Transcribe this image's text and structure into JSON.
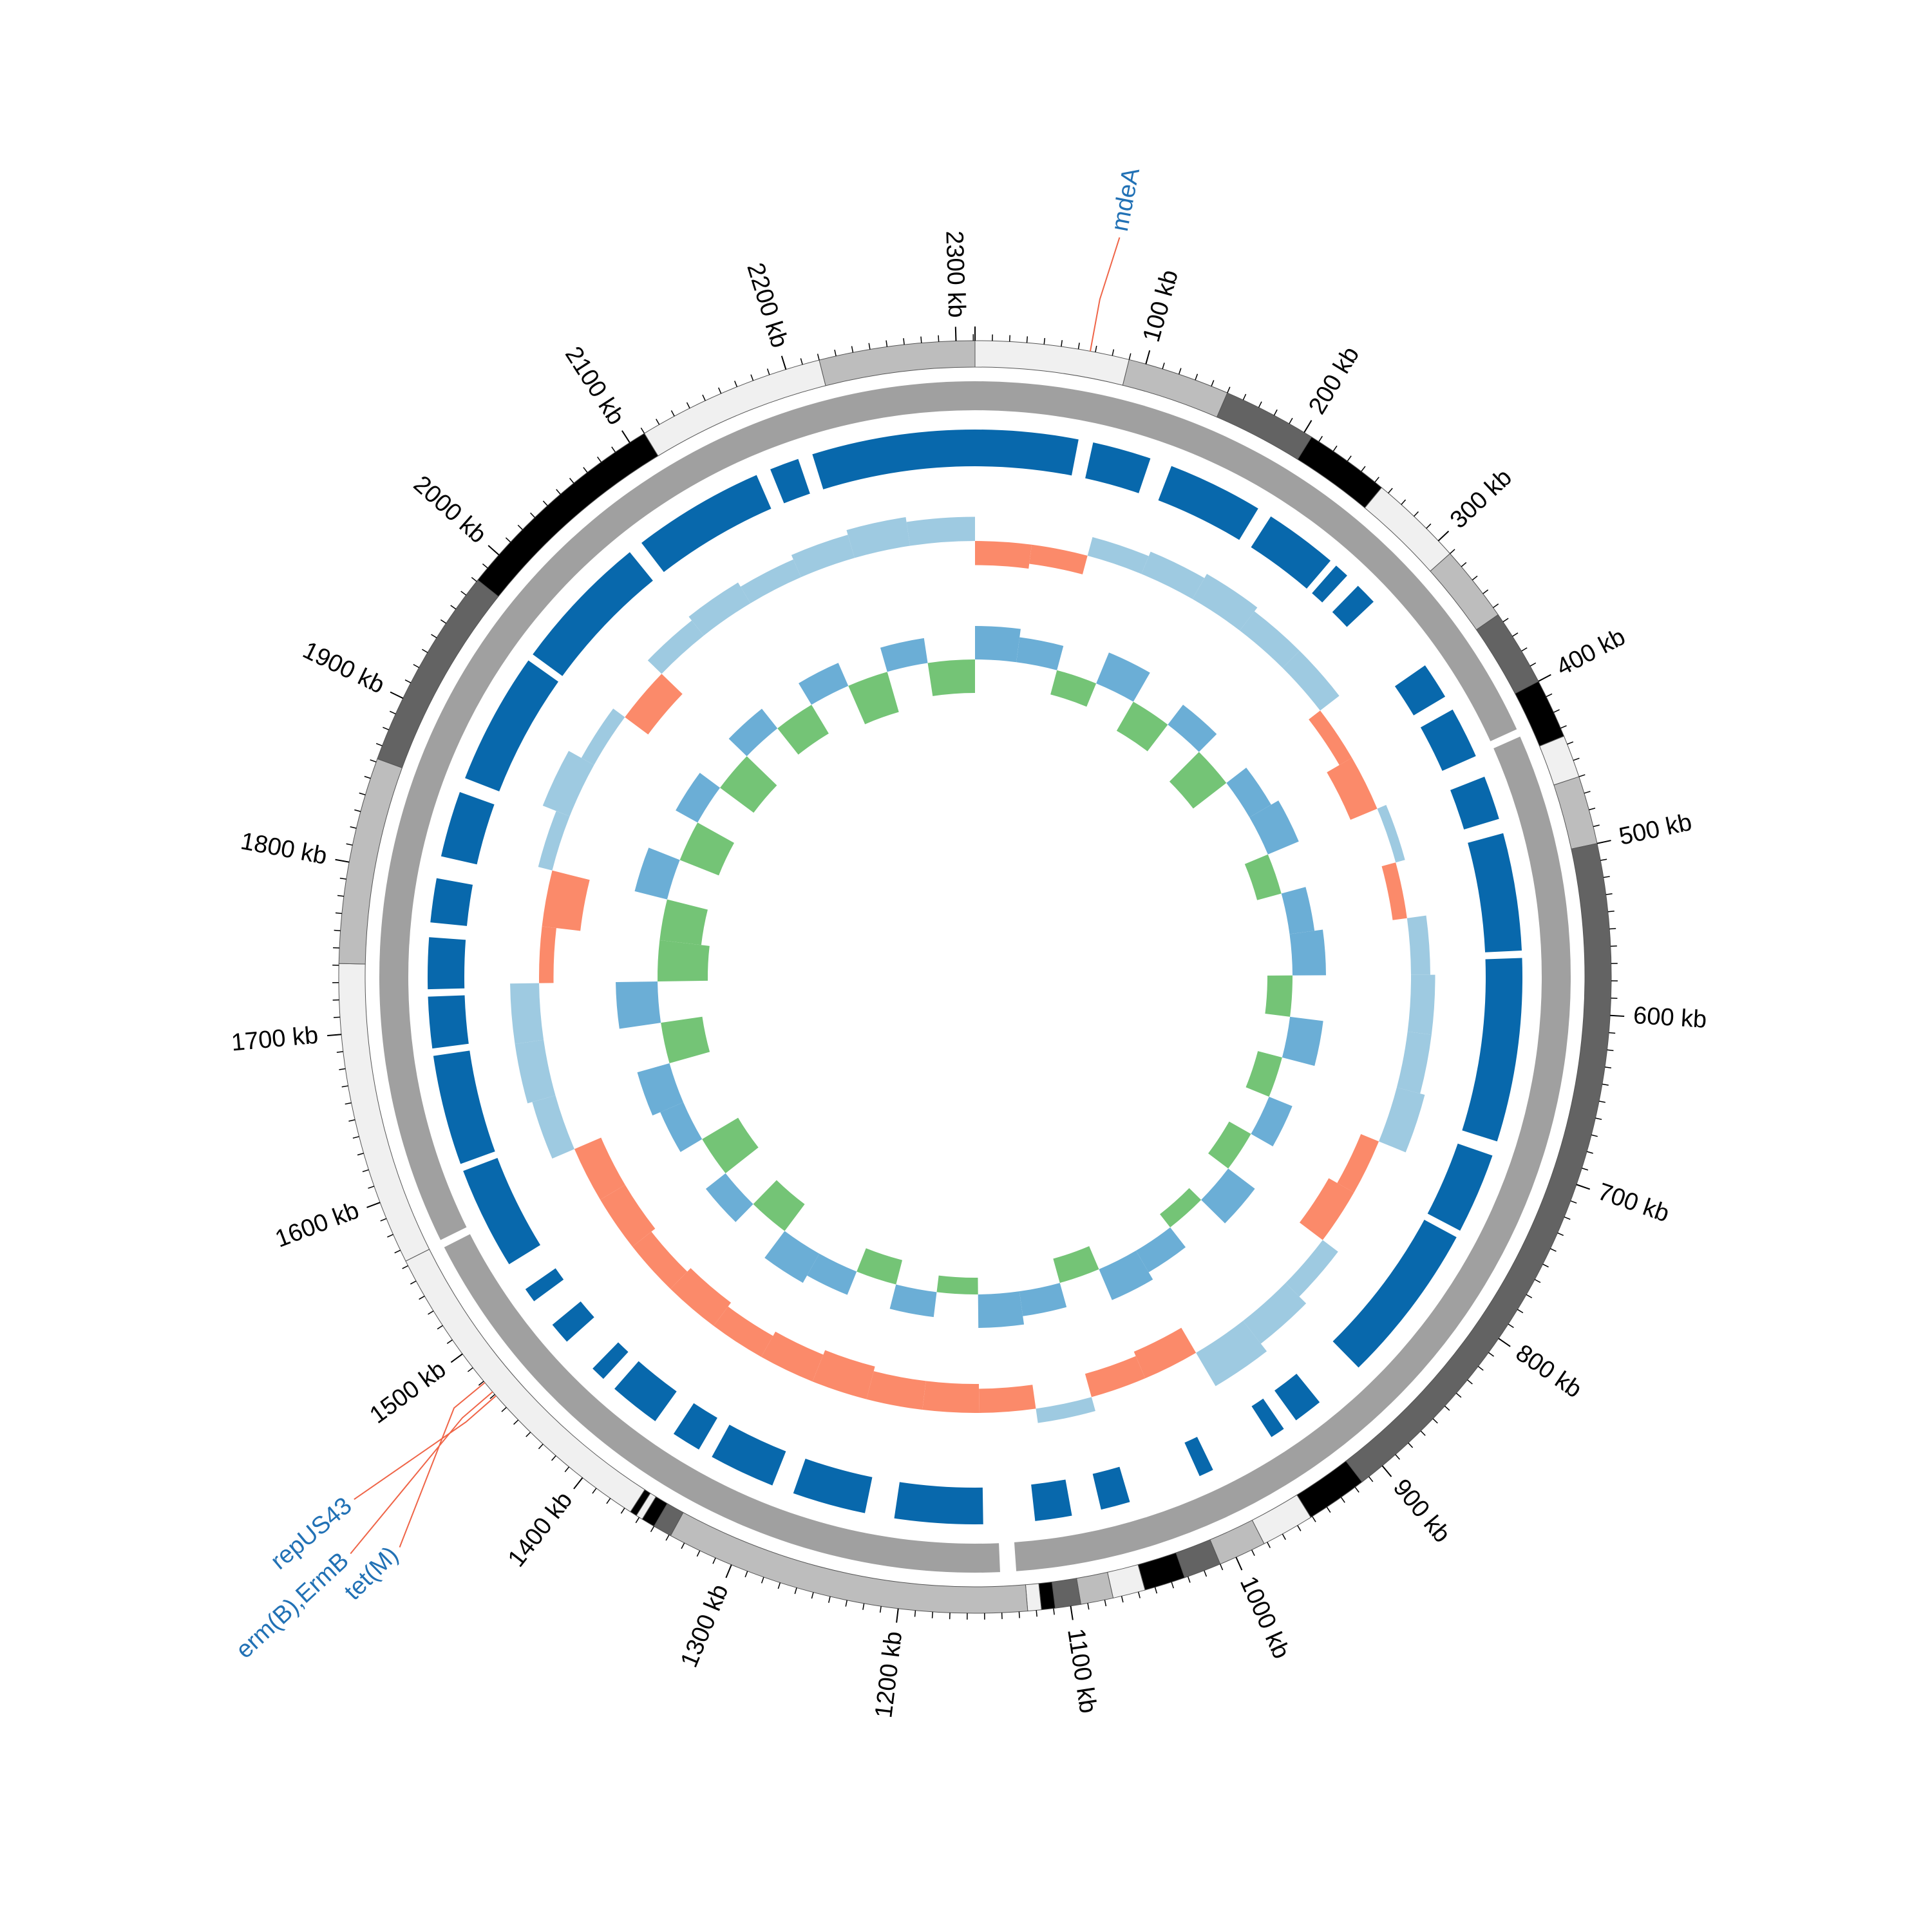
{
  "chart_data": {
    "type": "circular-genome",
    "xlim": [
      0,
      2311
    ],
    "xticks": [
      {
        "value": 100,
        "label": "100 kb"
      },
      {
        "value": 200,
        "label": "200 kb"
      },
      {
        "value": 300,
        "label": "300 kb"
      },
      {
        "value": 400,
        "label": "400 kb"
      },
      {
        "value": 500,
        "label": "500 kb"
      },
      {
        "value": 600,
        "label": "600 kb"
      },
      {
        "value": 700,
        "label": "700 kb"
      },
      {
        "value": 800,
        "label": "800 kb"
      },
      {
        "value": 900,
        "label": "900 kb"
      },
      {
        "value": 1000,
        "label": "1000 kb"
      },
      {
        "value": 1100,
        "label": "1100 kb"
      },
      {
        "value": 1200,
        "label": "1200 kb"
      },
      {
        "value": 1300,
        "label": "1300 kb"
      },
      {
        "value": 1400,
        "label": "1400 kb"
      },
      {
        "value": 1500,
        "label": "1500 kb"
      },
      {
        "value": 1600,
        "label": "1600 kb"
      },
      {
        "value": 1700,
        "label": "1700 kb"
      },
      {
        "value": 1800,
        "label": "1800 kb"
      },
      {
        "value": 1900,
        "label": "1900 kb"
      },
      {
        "value": 2000,
        "label": "2000 kb"
      },
      {
        "value": 2100,
        "label": "2100 kb"
      },
      {
        "value": 2200,
        "label": "2200 kb"
      },
      {
        "value": 2300,
        "label": "2300 kb"
      }
    ],
    "minor_tick_step": 10,
    "contigs": [
      {
        "start": 0,
        "end": 90,
        "color": "#f0f0f0"
      },
      {
        "start": 90,
        "end": 150,
        "color": "#bdbdbd"
      },
      {
        "start": 150,
        "end": 205,
        "color": "#636363"
      },
      {
        "start": 205,
        "end": 255,
        "color": "#000000"
      },
      {
        "start": 255,
        "end": 310,
        "color": "#f0f0f0"
      },
      {
        "start": 310,
        "end": 355,
        "color": "#bdbdbd"
      },
      {
        "start": 355,
        "end": 400,
        "color": "#636363"
      },
      {
        "start": 400,
        "end": 435,
        "color": "#000000"
      },
      {
        "start": 435,
        "end": 460,
        "color": "#f0f0f0"
      },
      {
        "start": 460,
        "end": 500,
        "color": "#bdbdbd"
      },
      {
        "start": 500,
        "end": 915,
        "color": "#636363"
      },
      {
        "start": 915,
        "end": 951,
        "color": "#000000"
      },
      {
        "start": 951,
        "end": 982,
        "color": "#f0f0f0"
      },
      {
        "start": 982,
        "end": 1010,
        "color": "#bdbdbd"
      },
      {
        "start": 1010,
        "end": 1032,
        "color": "#636363"
      },
      {
        "start": 1032,
        "end": 1056,
        "color": "#000000"
      },
      {
        "start": 1056,
        "end": 1075,
        "color": "#f0f0f0"
      },
      {
        "start": 1075,
        "end": 1094,
        "color": "#bdbdbd"
      },
      {
        "start": 1094,
        "end": 1109,
        "color": "#636363"
      },
      {
        "start": 1109,
        "end": 1117,
        "color": "#000000"
      },
      {
        "start": 1117,
        "end": 1125,
        "color": "#f0f0f0"
      },
      {
        "start": 1125,
        "end": 1339,
        "color": "#bdbdbd"
      },
      {
        "start": 1339,
        "end": 1350,
        "color": "#636363"
      },
      {
        "start": 1350,
        "end": 1358,
        "color": "#000000"
      },
      {
        "start": 1358,
        "end": 1362,
        "color": "#f0f0f0"
      },
      {
        "start": 1362,
        "end": 1366,
        "color": "#000000"
      },
      {
        "start": 1366,
        "end": 1563,
        "color": "#f0f0f0"
      },
      {
        "start": 1563,
        "end": 1741,
        "color": "#f0f0f0"
      },
      {
        "start": 1741,
        "end": 1862,
        "color": "#bdbdbd"
      },
      {
        "start": 1862,
        "end": 1981,
        "color": "#636363"
      },
      {
        "start": 1981,
        "end": 2110,
        "color": "#000000"
      },
      {
        "start": 2110,
        "end": 2220,
        "color": "#f0f0f0"
      },
      {
        "start": 2220,
        "end": 2311,
        "color": "#bdbdbd"
      }
    ],
    "cds_color": "#a0a0a0",
    "cds": [
      [
        0,
        420
      ],
      [
        425,
        1130
      ],
      [
        1140,
        1560
      ],
      [
        1565,
        2311
      ]
    ],
    "hits_color": "#0868ac",
    "hits": [
      [
        2200,
        2311
      ],
      [
        0,
        70
      ],
      [
        80,
        120
      ],
      [
        135,
        200
      ],
      [
        210,
        260
      ],
      [
        265,
        275
      ],
      [
        285,
        300
      ],
      [
        355,
        380
      ],
      [
        390,
        425
      ],
      [
        440,
        470
      ],
      [
        480,
        560
      ],
      [
        565,
        690
      ],
      [
        700,
        755
      ],
      [
        760,
        870
      ],
      [
        905,
        925
      ],
      [
        935,
        945
      ],
      [
        990,
        1000
      ],
      [
        1050,
        1070
      ],
      [
        1090,
        1115
      ],
      [
        1150,
        1210
      ],
      [
        1230,
        1280
      ],
      [
        1295,
        1340
      ],
      [
        1350,
        1370
      ],
      [
        1385,
        1420
      ],
      [
        1430,
        1440
      ],
      [
        1465,
        1480
      ],
      [
        1500,
        1510
      ],
      [
        1530,
        1600
      ],
      [
        1605,
        1680
      ],
      [
        1685,
        1720
      ],
      [
        1725,
        1760
      ],
      [
        1770,
        1800
      ],
      [
        1815,
        1860
      ],
      [
        1870,
        1960
      ],
      [
        1965,
        2060
      ],
      [
        2070,
        2160
      ],
      [
        2170,
        2190
      ]
    ],
    "x": [
      0,
      48,
      96,
      144,
      192,
      240,
      288,
      336,
      384,
      432,
      480,
      528,
      576,
      624,
      672,
      720,
      768,
      816,
      864,
      912,
      960,
      1008,
      1056,
      1104,
      1152,
      1200,
      1248,
      1296,
      1344,
      1392,
      1440,
      1488,
      1536,
      1584,
      1632,
      1680,
      1728,
      1776,
      1824,
      1872,
      1920,
      1968,
      2016,
      2064,
      2112,
      2160,
      2208,
      2256
    ],
    "gc_skew": {
      "positive_color": "#9ecae1",
      "negative_color": "#fb8a6a",
      "values": [
        -0.5,
        -0.4,
        0.4,
        0.5,
        0.6,
        0.5,
        0.5,
        -0.3,
        -0.6,
        0.2,
        -0.3,
        0.4,
        0.5,
        0.5,
        0.6,
        -0.4,
        -0.6,
        0.4,
        0.6,
        0.8,
        -0.6,
        -0.5,
        0.3,
        -0.5,
        -0.6,
        -0.6,
        -0.7,
        -0.6,
        -0.5,
        -0.6,
        -0.5,
        -0.6,
        -0.6,
        0.5,
        0.6,
        0.6,
        -0.3,
        -0.8,
        0.3,
        0.6,
        0.3,
        -0.6,
        0.4,
        0.5,
        0.4,
        0.5,
        0.6,
        0.5
      ]
    },
    "gc_content": {
      "positive_color": "#6baed6",
      "negative_color": "#74c476",
      "values": [
        0.4,
        0.3,
        -0.3,
        0.4,
        -0.4,
        0.3,
        -0.5,
        0.3,
        0.4,
        -0.3,
        0.3,
        0.4,
        -0.3,
        0.4,
        -0.3,
        0.3,
        -0.3,
        0.4,
        -0.2,
        0.3,
        0.4,
        -0.3,
        0.3,
        0.4,
        -0.2,
        0.3,
        -0.3,
        0.3,
        0.4,
        -0.4,
        0.3,
        -0.5,
        0.3,
        0.4,
        -0.5,
        0.5,
        -0.6,
        -0.5,
        0.4,
        -0.5,
        0.3,
        -0.5,
        0.3,
        -0.4,
        0.3,
        -0.5,
        0.3,
        -0.4
      ]
    },
    "annotation_color": "#2171b5",
    "leader_color": "#ef6548",
    "annotations": [
      {
        "label": "mdeA",
        "position": 67
      },
      {
        "label": "repUS43",
        "position": 1469
      },
      {
        "label": "erm(B),ErmB",
        "position": 1472
      },
      {
        "label": "tet(M)",
        "position": 1479
      }
    ]
  }
}
